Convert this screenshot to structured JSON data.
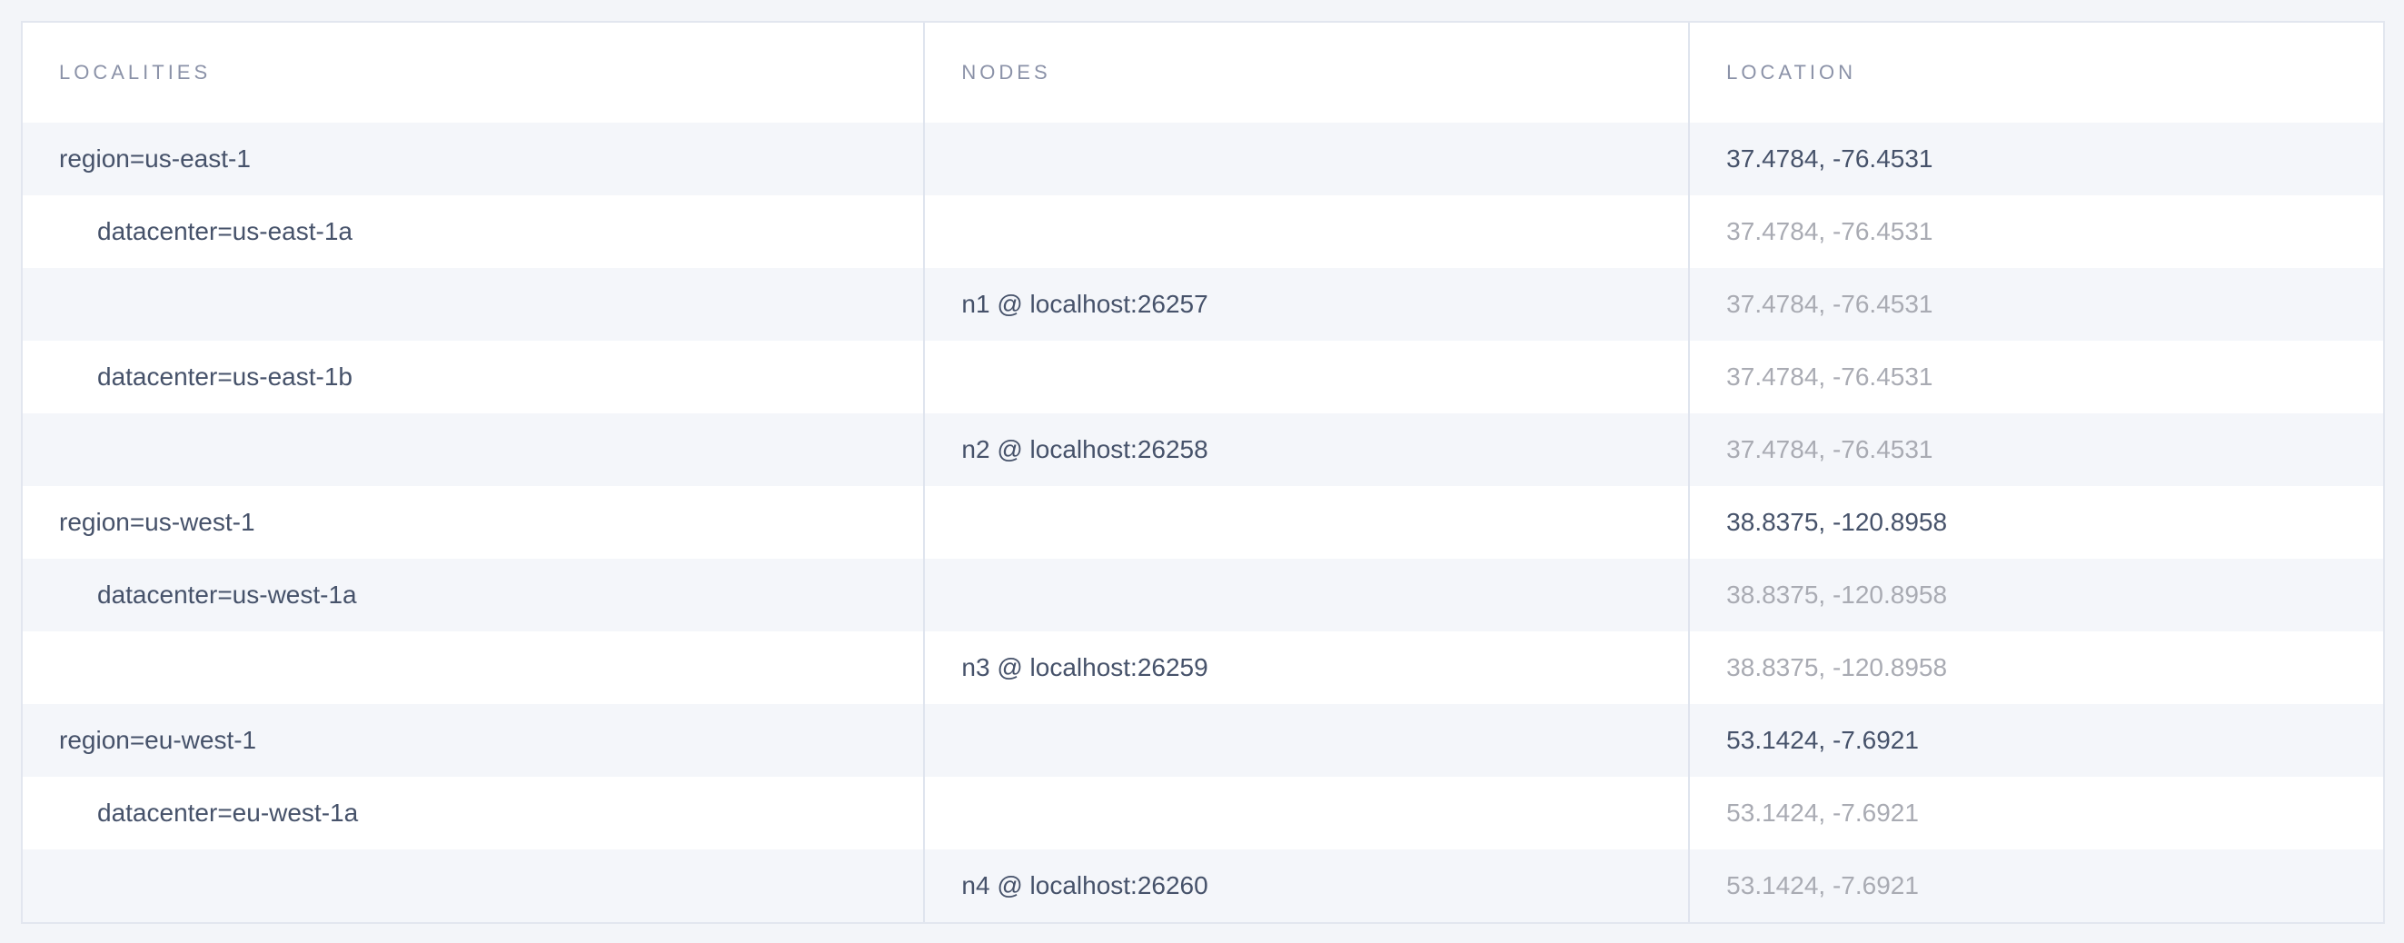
{
  "colors": {
    "page_bg": "#f3f5f9",
    "table_bg": "#ffffff",
    "stripe_bg": "#f4f6fa",
    "border": "#e2e6ef",
    "divider": "#dfe4ee",
    "header_text": "#8b92a8",
    "primary_text": "#46526a",
    "muted_text": "#a9abb3"
  },
  "table": {
    "columns": [
      "LOCALITIES",
      "NODES",
      "LOCATION"
    ],
    "rows": [
      {
        "locality": "region=us-east-1",
        "tier": 0,
        "node": "",
        "location": "37.4784, -76.4531",
        "location_muted": false
      },
      {
        "locality": "datacenter=us-east-1a",
        "tier": 1,
        "node": "",
        "location": "37.4784, -76.4531",
        "location_muted": true
      },
      {
        "locality": "",
        "tier": 0,
        "node": "n1 @ localhost:26257",
        "location": "37.4784, -76.4531",
        "location_muted": true
      },
      {
        "locality": "datacenter=us-east-1b",
        "tier": 1,
        "node": "",
        "location": "37.4784, -76.4531",
        "location_muted": true
      },
      {
        "locality": "",
        "tier": 0,
        "node": "n2 @ localhost:26258",
        "location": "37.4784, -76.4531",
        "location_muted": true
      },
      {
        "locality": "region=us-west-1",
        "tier": 0,
        "node": "",
        "location": "38.8375, -120.8958",
        "location_muted": false
      },
      {
        "locality": "datacenter=us-west-1a",
        "tier": 1,
        "node": "",
        "location": "38.8375, -120.8958",
        "location_muted": true
      },
      {
        "locality": "",
        "tier": 0,
        "node": "n3 @ localhost:26259",
        "location": "38.8375, -120.8958",
        "location_muted": true
      },
      {
        "locality": "region=eu-west-1",
        "tier": 0,
        "node": "",
        "location": "53.1424, -7.6921",
        "location_muted": false
      },
      {
        "locality": "datacenter=eu-west-1a",
        "tier": 1,
        "node": "",
        "location": "53.1424, -7.6921",
        "location_muted": true
      },
      {
        "locality": "",
        "tier": 0,
        "node": "n4 @ localhost:26260",
        "location": "53.1424, -7.6921",
        "location_muted": true
      }
    ]
  }
}
